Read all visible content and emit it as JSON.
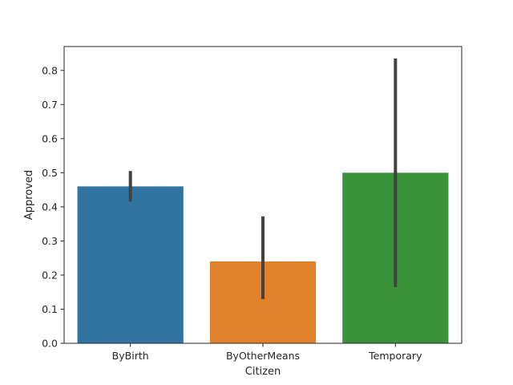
{
  "chart_data": {
    "type": "bar",
    "xlabel": "Citizen",
    "ylabel": "Approved",
    "categories": [
      "ByBirth",
      "ByOtherMeans",
      "Temporary"
    ],
    "values": [
      0.46,
      0.24,
      0.5
    ],
    "error_bars": [
      {
        "low": 0.415,
        "high": 0.505
      },
      {
        "low": 0.13,
        "high": 0.372
      },
      {
        "low": 0.165,
        "high": 0.835
      }
    ],
    "colors": [
      "#3274a1",
      "#e1812c",
      "#3a923a"
    ],
    "error_color": "#424242",
    "ylim": [
      0,
      0.87
    ],
    "yticks": [
      0.0,
      0.1,
      0.2,
      0.3,
      0.4,
      0.5,
      0.6,
      0.7,
      0.8
    ],
    "ytick_labels": [
      "0.0",
      "0.1",
      "0.2",
      "0.3",
      "0.4",
      "0.5",
      "0.6",
      "0.7",
      "0.8"
    ],
    "grid": false,
    "legend": "none"
  }
}
